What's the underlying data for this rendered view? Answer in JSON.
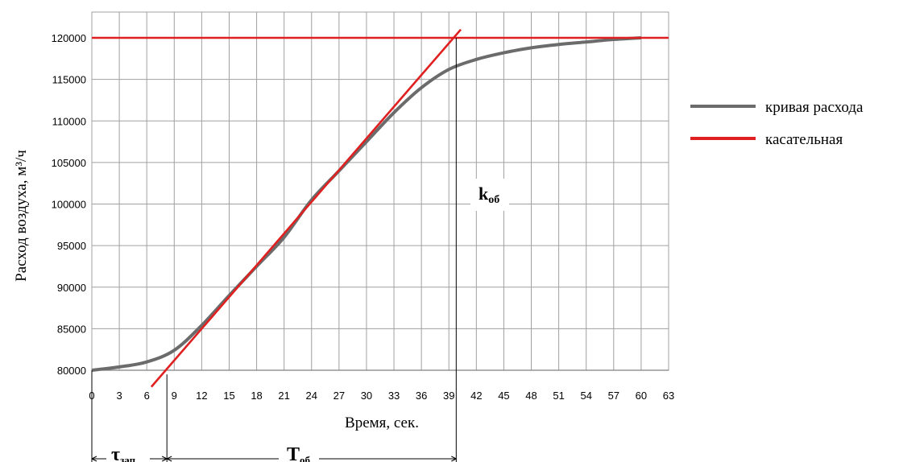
{
  "chart_data": {
    "type": "line",
    "xlabel": "Время, сек.",
    "ylabel": "Расход воздуха, м³/ч",
    "xlim": [
      0,
      63
    ],
    "ylim": [
      80000,
      120000
    ],
    "x_ticks": [
      0,
      3,
      6,
      9,
      12,
      15,
      18,
      21,
      24,
      27,
      30,
      33,
      36,
      39,
      42,
      45,
      48,
      51,
      54,
      57,
      60,
      63
    ],
    "y_ticks": [
      80000,
      85000,
      90000,
      95000,
      100000,
      105000,
      110000,
      115000,
      120000
    ],
    "grid": true,
    "legend_position": "right",
    "series": [
      {
        "name": "кривая расхода",
        "color": "#6b6b6b",
        "x": [
          0,
          3,
          6,
          9,
          12,
          15,
          18,
          21,
          24,
          27,
          30,
          33,
          36,
          39,
          42,
          45,
          48,
          51,
          54,
          57,
          60
        ],
        "y": [
          80000,
          80400,
          81000,
          82400,
          85400,
          89000,
          92500,
          96000,
          100500,
          104000,
          107500,
          111000,
          114000,
          116200,
          117400,
          118200,
          118800,
          119200,
          119500,
          119800,
          120000
        ]
      },
      {
        "name": "касательная",
        "color": "#e02020",
        "x": [
          6.5,
          40.3
        ],
        "y": [
          78000,
          121000
        ]
      },
      {
        "name": "",
        "color": "#e02020",
        "x": [
          0,
          63
        ],
        "y": [
          120000,
          120000
        ]
      }
    ],
    "annotations": {
      "k_main": "k",
      "k_sub": "об",
      "tau_main": "τ",
      "tau_sub": "зап",
      "T_main": "T",
      "T_sub": "об"
    },
    "markers": {
      "tau_end_x": 8.2,
      "T_end_x": 39.8
    }
  }
}
